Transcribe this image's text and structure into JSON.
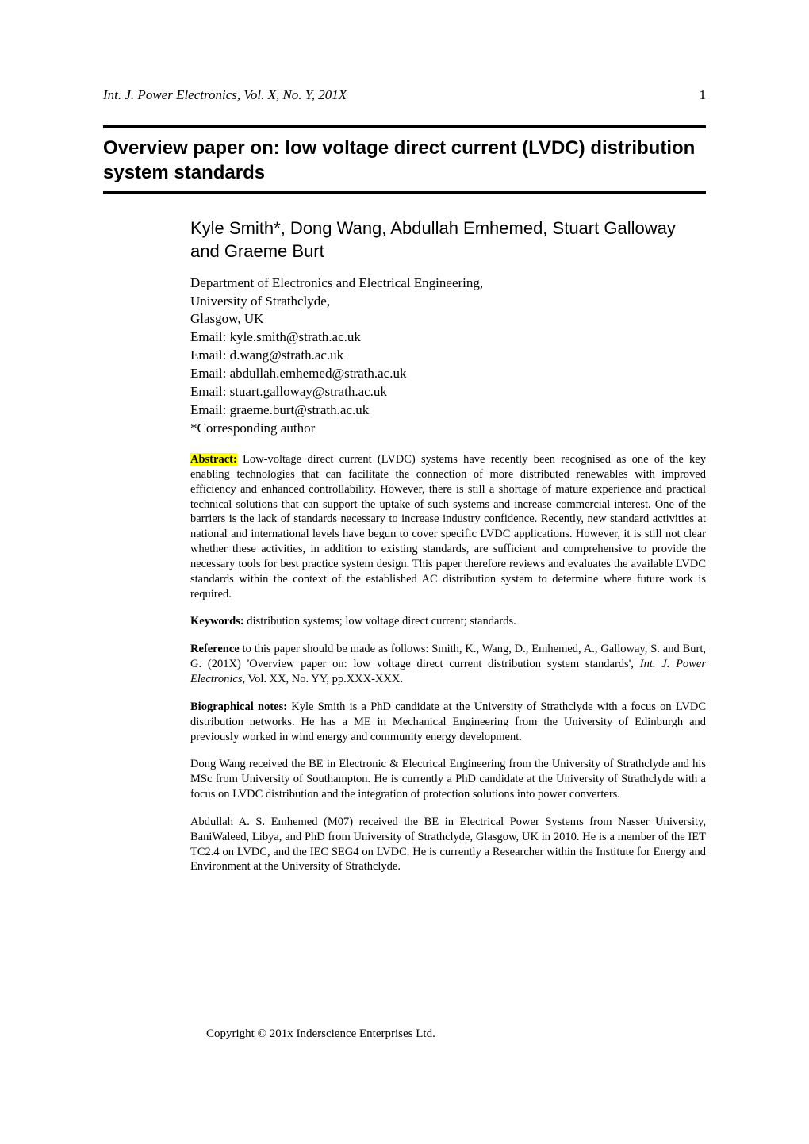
{
  "header": {
    "running_title": "Int. J. Power Electronics, Vol. X, No. Y, 201X",
    "page_number": "1"
  },
  "title": "Overview paper on: low voltage direct current (LVDC) distribution system standards",
  "authors": "Kyle Smith*, Dong Wang, Abdullah Emhemed, Stuart Galloway and Graeme Burt",
  "affiliation": {
    "department": "Department of Electronics and Electrical Engineering,",
    "university": "University of Strathclyde,",
    "location": "Glasgow, UK",
    "email1": "Email: kyle.smith@strath.ac.uk",
    "email2": "Email: d.wang@strath.ac.uk",
    "email3": "Email: abdullah.emhemed@strath.ac.uk",
    "email4": "Email: stuart.galloway@strath.ac.uk",
    "email5": "Email: graeme.burt@strath.ac.uk",
    "corresponding": "*Corresponding author"
  },
  "abstract": {
    "label": "Abstract:",
    "text": " Low-voltage direct current (LVDC) systems have recently been recognised as one of the key enabling technologies that can facilitate the connection of more distributed renewables with improved efficiency and enhanced controllability. However, there is still a shortage of mature experience and practical technical solutions that can support the uptake of such systems and increase commercial interest. One of the barriers is the lack of standards necessary to increase industry confidence. Recently, new standard activities at national and international levels have begun to cover specific LVDC applications. However, it is still not clear whether these activities, in addition to existing standards, are sufficient and comprehensive to provide the necessary tools for best practice system design. This paper therefore reviews and evaluates the available LVDC standards within the context of the established AC distribution system to determine where future work is required."
  },
  "keywords": {
    "label": "Keywords:",
    "text": " distribution systems; low voltage direct current; standards."
  },
  "reference": {
    "label": "Reference",
    "text1": " to this paper should be made as follows: Smith, K., Wang, D., Emhemed, A., Galloway, S. and Burt, G. (201X) 'Overview paper on: low voltage direct current distribution system standards', ",
    "journal": "Int. J. Power Electronics",
    "text2": ", Vol. XX, No. YY, pp.XXX-XXX."
  },
  "bio": {
    "label": "Biographical notes:",
    "bio1": " Kyle Smith is a PhD candidate at the University of Strathclyde with a focus on LVDC distribution networks. He has a ME in Mechanical Engineering from the University of Edinburgh and previously worked in wind energy and community energy development.",
    "bio2": "Dong Wang received the BE in Electronic & Electrical Engineering from the University of Strathclyde and his MSc from University of Southampton. He is currently a PhD candidate at the University of Strathclyde with a focus on LVDC distribution and the integration of protection solutions into power converters.",
    "bio3": "Abdullah A. S. Emhemed (M07) received the BE in Electrical Power Systems from Nasser University, BaniWaleed, Libya, and PhD from University of Strathclyde, Glasgow, UK in 2010. He is a member of the IET TC2.4 on LVDC, and the IEC SEG4 on LVDC. He is currently a Researcher within the Institute for Energy and Environment at the University of Strathclyde."
  },
  "copyright": "Copyright © 201x Inderscience Enterprises Ltd.",
  "colors": {
    "text": "#000000",
    "background": "#ffffff",
    "highlight": "#ffff00"
  }
}
